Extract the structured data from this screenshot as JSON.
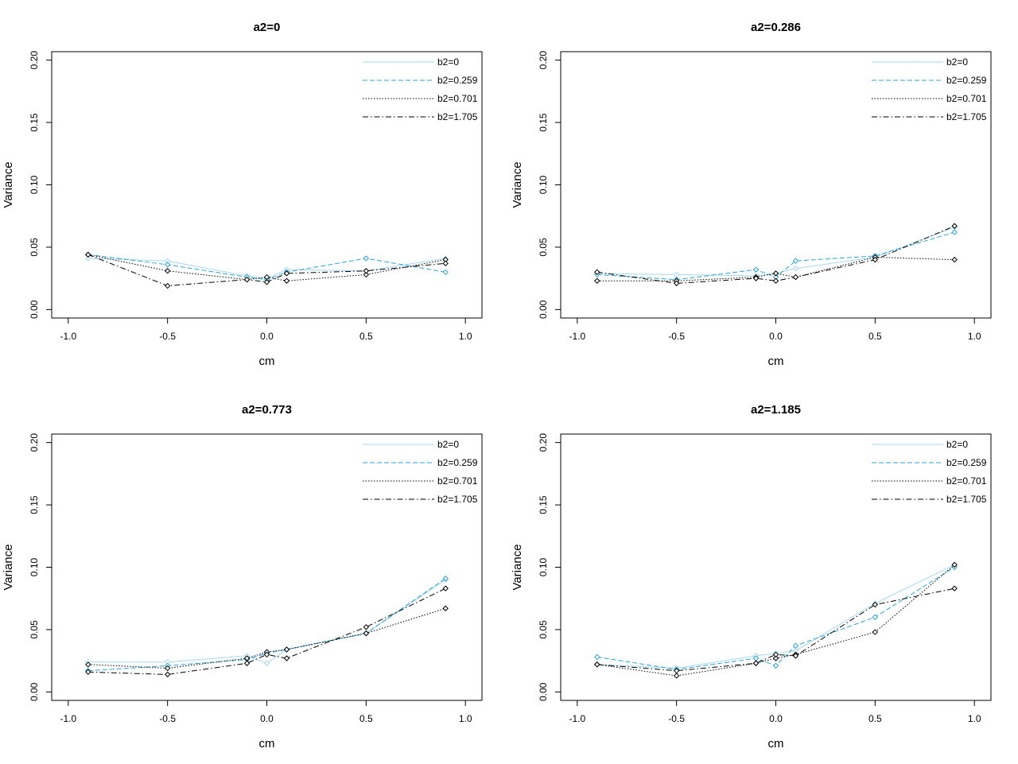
{
  "chart_data": [
    {
      "type": "line",
      "title": "a2=0",
      "xlabel": "cm",
      "ylabel": "Variance",
      "xlim": [
        -1.0,
        1.0
      ],
      "ylim": [
        0.0,
        0.2
      ],
      "xticks": [
        "-1.0",
        "-0.5",
        "0.0",
        "0.5",
        "1.0"
      ],
      "yticks": [
        "0.00",
        "0.05",
        "0.10",
        "0.15",
        "0.20"
      ],
      "legend_position": "top-right",
      "grid": false,
      "x": [
        -0.9,
        -0.5,
        -0.1,
        0.0,
        0.1,
        0.5,
        0.9
      ],
      "series": [
        {
          "name": "b2=0",
          "color": "#a6d8ec",
          "dash": "solid",
          "values": [
            0.041,
            0.039,
            0.027,
            0.025,
            0.032,
            0.031,
            0.041
          ]
        },
        {
          "name": "b2=0.259",
          "color": "#29a3d6",
          "dash": "dashed",
          "values": [
            0.044,
            0.036,
            0.026,
            0.024,
            0.03,
            0.041,
            0.03
          ]
        },
        {
          "name": "b2=0.701",
          "color": "#000000",
          "dash": "dotted",
          "values": [
            0.044,
            0.031,
            0.024,
            0.026,
            0.023,
            0.028,
            0.04
          ]
        },
        {
          "name": "b2=1.705",
          "color": "#000000",
          "dash": "dashdot",
          "values": [
            0.044,
            0.019,
            0.024,
            0.022,
            0.029,
            0.031,
            0.037
          ]
        }
      ]
    },
    {
      "type": "line",
      "title": "a2=0.286",
      "xlabel": "cm",
      "ylabel": "Variance",
      "xlim": [
        -1.0,
        1.0
      ],
      "ylim": [
        0.0,
        0.2
      ],
      "xticks": [
        "-1.0",
        "-0.5",
        "0.0",
        "0.5",
        "1.0"
      ],
      "yticks": [
        "0.00",
        "0.05",
        "0.10",
        "0.15",
        "0.20"
      ],
      "legend_position": "top-right",
      "grid": false,
      "x": [
        -0.9,
        -0.5,
        -0.1,
        0.0,
        0.1,
        0.5,
        0.9
      ],
      "series": [
        {
          "name": "b2=0",
          "color": "#a6d8ec",
          "dash": "solid",
          "values": [
            0.029,
            0.028,
            0.027,
            0.029,
            0.033,
            0.042,
            0.066
          ]
        },
        {
          "name": "b2=0.259",
          "color": "#29a3d6",
          "dash": "dashed",
          "values": [
            0.028,
            0.024,
            0.032,
            0.026,
            0.039,
            0.043,
            0.062
          ]
        },
        {
          "name": "b2=0.701",
          "color": "#000000",
          "dash": "dotted",
          "values": [
            0.023,
            0.023,
            0.026,
            0.029,
            0.026,
            0.042,
            0.04
          ]
        },
        {
          "name": "b2=1.705",
          "color": "#000000",
          "dash": "dashdot",
          "values": [
            0.03,
            0.021,
            0.025,
            0.023,
            0.026,
            0.04,
            0.067
          ]
        }
      ]
    },
    {
      "type": "line",
      "title": "a2=0.773",
      "xlabel": "cm",
      "ylabel": "Variance",
      "xlim": [
        -1.0,
        1.0
      ],
      "ylim": [
        0.0,
        0.2
      ],
      "xticks": [
        "-1.0",
        "-0.5",
        "0.0",
        "0.5",
        "1.0"
      ],
      "yticks": [
        "0.00",
        "0.05",
        "0.10",
        "0.15",
        "0.20"
      ],
      "legend_position": "top-right",
      "grid": false,
      "x": [
        -0.9,
        -0.5,
        -0.1,
        0.0,
        0.1,
        0.5,
        0.9
      ],
      "series": [
        {
          "name": "b2=0",
          "color": "#a6d8ec",
          "dash": "solid",
          "values": [
            0.024,
            0.024,
            0.029,
            0.023,
            0.034,
            0.047,
            0.09
          ]
        },
        {
          "name": "b2=0.259",
          "color": "#29a3d6",
          "dash": "dashed",
          "values": [
            0.017,
            0.021,
            0.026,
            0.031,
            0.034,
            0.047,
            0.091
          ]
        },
        {
          "name": "b2=0.701",
          "color": "#000000",
          "dash": "dotted",
          "values": [
            0.022,
            0.019,
            0.027,
            0.032,
            0.034,
            0.047,
            0.067
          ]
        },
        {
          "name": "b2=1.705",
          "color": "#000000",
          "dash": "dashdot",
          "values": [
            0.016,
            0.014,
            0.023,
            0.03,
            0.027,
            0.052,
            0.083
          ]
        }
      ]
    },
    {
      "type": "line",
      "title": "a2=1.185",
      "xlabel": "cm",
      "ylabel": "Variance",
      "xlim": [
        -1.0,
        1.0
      ],
      "ylim": [
        0.0,
        0.2
      ],
      "xticks": [
        "-1.0",
        "-0.5",
        "0.0",
        "0.5",
        "1.0"
      ],
      "yticks": [
        "0.00",
        "0.05",
        "0.10",
        "0.15",
        "0.20"
      ],
      "legend_position": "top-right",
      "grid": false,
      "x": [
        -0.9,
        -0.5,
        -0.1,
        0.0,
        0.1,
        0.5,
        0.9
      ],
      "series": [
        {
          "name": "b2=0",
          "color": "#a6d8ec",
          "dash": "solid",
          "values": [
            0.022,
            0.019,
            0.029,
            0.031,
            0.033,
            0.071,
            0.102
          ]
        },
        {
          "name": "b2=0.259",
          "color": "#29a3d6",
          "dash": "dashed",
          "values": [
            0.028,
            0.018,
            0.027,
            0.021,
            0.037,
            0.06,
            0.1
          ]
        },
        {
          "name": "b2=0.701",
          "color": "#000000",
          "dash": "dotted",
          "values": [
            0.022,
            0.013,
            0.023,
            0.027,
            0.03,
            0.048,
            0.102
          ]
        },
        {
          "name": "b2=1.705",
          "color": "#000000",
          "dash": "dashdot",
          "values": [
            0.022,
            0.017,
            0.023,
            0.03,
            0.029,
            0.07,
            0.083
          ]
        }
      ]
    }
  ]
}
